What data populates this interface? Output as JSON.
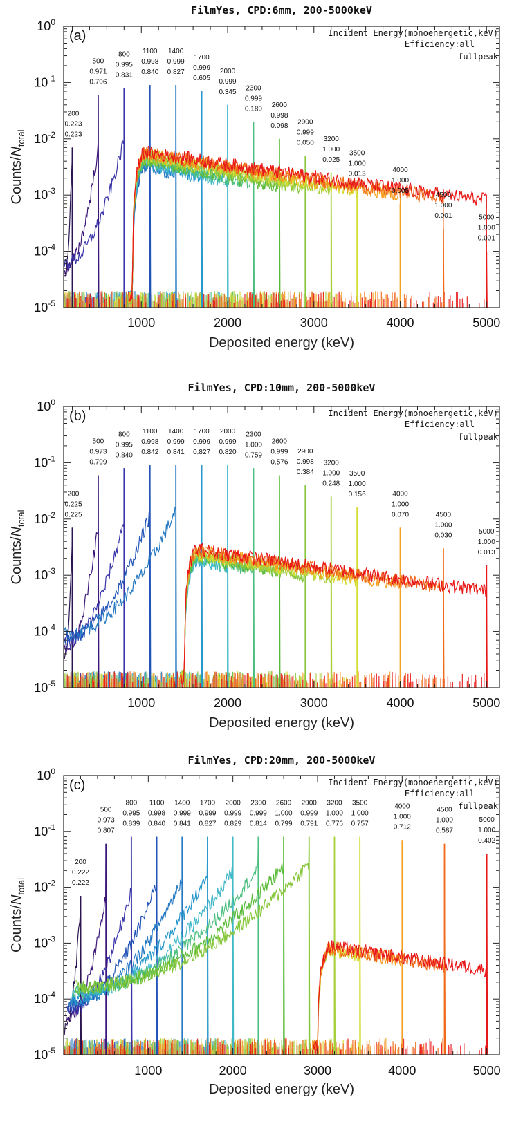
{
  "chart_data": [
    {
      "type": "line",
      "title": "FilmYes, CPD:6mm, 200-5000keV",
      "panel_label": "(a)",
      "xlabel": "Deposited energy (keV)",
      "ylabel_main": "Counts/",
      "ylabel_italic": "N",
      "ylabel_sub": "total",
      "xlim": [
        100,
        5150
      ],
      "ylim": [
        1e-05,
        1
      ],
      "yscale": "log",
      "x_ticks": [
        1000,
        2000,
        3000,
        4000,
        5000
      ],
      "x_tick_labels": [
        "1000",
        "2000",
        "3000",
        "4000",
        "5000"
      ],
      "y_tick_exponents": [
        "0",
        "-1",
        "-2",
        "-3",
        "-4",
        "-5"
      ],
      "legend_lines": [
        "Incident Energy(monoenergetic,keV)",
        "Efficiency:all",
        "fullpeak"
      ],
      "threshold_keV": 900,
      "continuum_peak": 0.006,
      "series": [
        {
          "energy": 200,
          "label": "200",
          "efficiency_all": "0.223",
          "fullpeak": "0.223",
          "peak": 0.007,
          "color": "#2b1450"
        },
        {
          "energy": 500,
          "label": "500",
          "efficiency_all": "0.971",
          "fullpeak": "0.796",
          "peak": 0.06,
          "color": "#3c1678"
        },
        {
          "energy": 800,
          "label": "800",
          "efficiency_all": "0.995",
          "fullpeak": "0.831",
          "peak": 0.08,
          "color": "#3a35a8"
        },
        {
          "energy": 1100,
          "label": "1100",
          "efficiency_all": "0.998",
          "fullpeak": "0.840",
          "peak": 0.09,
          "color": "#2355b8"
        },
        {
          "energy": 1400,
          "label": "1400",
          "efficiency_all": "0.999",
          "fullpeak": "0.827",
          "peak": 0.09,
          "color": "#2579c2"
        },
        {
          "energy": 1700,
          "label": "1700",
          "efficiency_all": "0.999",
          "fullpeak": "0.605",
          "peak": 0.07,
          "color": "#2898cc"
        },
        {
          "energy": 2000,
          "label": "2000",
          "efficiency_all": "0.999",
          "fullpeak": "0.345",
          "peak": 0.04,
          "color": "#40b8c8"
        },
        {
          "energy": 2300,
          "label": "2300",
          "efficiency_all": "0.999",
          "fullpeak": "0.189",
          "peak": 0.02,
          "color": "#4cbf80"
        },
        {
          "energy": 2600,
          "label": "2600",
          "efficiency_all": "0.998",
          "fullpeak": "0.098",
          "peak": 0.01,
          "color": "#5abb3a"
        },
        {
          "energy": 2900,
          "label": "2900",
          "efficiency_all": "0.999",
          "fullpeak": "0.050",
          "peak": 0.005,
          "color": "#86c63a"
        },
        {
          "energy": 3200,
          "label": "3200",
          "efficiency_all": "1.000",
          "fullpeak": "0.025",
          "peak": 0.0025,
          "color": "#a8cf3a"
        },
        {
          "energy": 3500,
          "label": "3500",
          "efficiency_all": "1.000",
          "fullpeak": "0.013",
          "peak": 0.0014,
          "color": "#d4dc30"
        },
        {
          "energy": 4000,
          "label": "4000",
          "efficiency_all": "1.000",
          "fullpeak": "0.005",
          "peak": 0.0007,
          "color": "#f4a020"
        },
        {
          "energy": 4500,
          "label": "4500",
          "efficiency_all": "1.000",
          "fullpeak": "0.001",
          "peak": 0.00025,
          "color": "#f06a1a"
        },
        {
          "energy": 5000,
          "label": "5000",
          "efficiency_all": "1.000",
          "fullpeak": "0.001",
          "peak": 0.0001,
          "color": "#e81818"
        }
      ]
    },
    {
      "type": "line",
      "title": "FilmYes, CPD:10mm, 200-5000keV",
      "panel_label": "(b)",
      "xlabel": "Deposited energy (keV)",
      "ylabel_main": "Counts/",
      "ylabel_italic": "N",
      "ylabel_sub": "total",
      "xlim": [
        100,
        5150
      ],
      "ylim": [
        1e-05,
        1
      ],
      "yscale": "log",
      "x_ticks": [
        1000,
        2000,
        3000,
        4000,
        5000
      ],
      "x_tick_labels": [
        "1000",
        "2000",
        "3000",
        "4000",
        "5000"
      ],
      "y_tick_exponents": [
        "0",
        "-1",
        "-2",
        "-3",
        "-4",
        "-5"
      ],
      "legend_lines": [
        "Incident Energy(monoenergetic,keV)",
        "Efficiency:all",
        "fullpeak"
      ],
      "threshold_keV": 1500,
      "continuum_peak": 0.003,
      "series": [
        {
          "energy": 200,
          "label": "200",
          "efficiency_all": "0.225",
          "fullpeak": "0.225",
          "peak": 0.007,
          "color": "#2b1450"
        },
        {
          "energy": 500,
          "label": "500",
          "efficiency_all": "0.973",
          "fullpeak": "0.799",
          "peak": 0.06,
          "color": "#3c1678"
        },
        {
          "energy": 800,
          "label": "800",
          "efficiency_all": "0.995",
          "fullpeak": "0.840",
          "peak": 0.08,
          "color": "#3a35a8"
        },
        {
          "energy": 1100,
          "label": "1100",
          "efficiency_all": "0.998",
          "fullpeak": "0.842",
          "peak": 0.09,
          "color": "#2355b8"
        },
        {
          "energy": 1400,
          "label": "1400",
          "efficiency_all": "0.999",
          "fullpeak": "0.841",
          "peak": 0.09,
          "color": "#2579c2"
        },
        {
          "energy": 1700,
          "label": "1700",
          "efficiency_all": "0.999",
          "fullpeak": "0.827",
          "peak": 0.09,
          "color": "#2898cc"
        },
        {
          "energy": 2000,
          "label": "2000",
          "efficiency_all": "0.999",
          "fullpeak": "0.820",
          "peak": 0.09,
          "color": "#40b8c8"
        },
        {
          "energy": 2300,
          "label": "2300",
          "efficiency_all": "1.000",
          "fullpeak": "0.759",
          "peak": 0.08,
          "color": "#4cbf80"
        },
        {
          "energy": 2600,
          "label": "2600",
          "efficiency_all": "0.999",
          "fullpeak": "0.576",
          "peak": 0.06,
          "color": "#5abb3a"
        },
        {
          "energy": 2900,
          "label": "2900",
          "efficiency_all": "0.998",
          "fullpeak": "0.384",
          "peak": 0.04,
          "color": "#86c63a"
        },
        {
          "energy": 3200,
          "label": "3200",
          "efficiency_all": "1.000",
          "fullpeak": "0.248",
          "peak": 0.025,
          "color": "#a8cf3a"
        },
        {
          "energy": 3500,
          "label": "3500",
          "efficiency_all": "1.000",
          "fullpeak": "0.156",
          "peak": 0.016,
          "color": "#d4dc30"
        },
        {
          "energy": 4000,
          "label": "4000",
          "efficiency_all": "1.000",
          "fullpeak": "0.070",
          "peak": 0.007,
          "color": "#f4a020"
        },
        {
          "energy": 4500,
          "label": "4500",
          "efficiency_all": "1.000",
          "fullpeak": "0.030",
          "peak": 0.003,
          "color": "#f06a1a"
        },
        {
          "energy": 5000,
          "label": "5000",
          "efficiency_all": "1.000",
          "fullpeak": "0.013",
          "peak": 0.0015,
          "color": "#e81818"
        }
      ]
    },
    {
      "type": "line",
      "title": "FilmYes, CPD:20mm, 200-5000keV",
      "panel_label": "(c)",
      "xlabel": "Deposited energy (keV)",
      "ylabel_main": "Counts/",
      "ylabel_italic": "N",
      "ylabel_sub": "total",
      "xlim": [
        0,
        5150
      ],
      "ylim": [
        1e-05,
        1
      ],
      "yscale": "log",
      "x_ticks": [
        1000,
        2000,
        3000,
        4000,
        5000
      ],
      "x_tick_labels": [
        "1000",
        "2000",
        "3000",
        "4000",
        "5000"
      ],
      "y_tick_exponents": [
        "0",
        "-1",
        "-2",
        "-3",
        "-4",
        "-5"
      ],
      "legend_lines": [
        "Incident Energy(monoenergetic,keV)",
        "Efficiency:all",
        "fullpeak"
      ],
      "threshold_keV": 3000,
      "continuum_peak": 0.0009,
      "series": [
        {
          "energy": 200,
          "label": "200",
          "efficiency_all": "0.222",
          "fullpeak": "0.222",
          "peak": 0.007,
          "color": "#2b1450"
        },
        {
          "energy": 500,
          "label": "500",
          "efficiency_all": "0.973",
          "fullpeak": "0.807",
          "peak": 0.06,
          "color": "#3c1678"
        },
        {
          "energy": 800,
          "label": "800",
          "efficiency_all": "0.995",
          "fullpeak": "0.839",
          "peak": 0.08,
          "color": "#3a35a8"
        },
        {
          "energy": 1100,
          "label": "1100",
          "efficiency_all": "0.998",
          "fullpeak": "0.840",
          "peak": 0.08,
          "color": "#2355b8"
        },
        {
          "energy": 1400,
          "label": "1400",
          "efficiency_all": "0.999",
          "fullpeak": "0.841",
          "peak": 0.08,
          "color": "#2579c2"
        },
        {
          "energy": 1700,
          "label": "1700",
          "efficiency_all": "0.999",
          "fullpeak": "0.827",
          "peak": 0.08,
          "color": "#2898cc"
        },
        {
          "energy": 2000,
          "label": "2000",
          "efficiency_all": "0.999",
          "fullpeak": "0.829",
          "peak": 0.08,
          "color": "#40b8c8"
        },
        {
          "energy": 2300,
          "label": "2300",
          "efficiency_all": "0.999",
          "fullpeak": "0.814",
          "peak": 0.08,
          "color": "#4cbf80"
        },
        {
          "energy": 2600,
          "label": "2600",
          "efficiency_all": "1.000",
          "fullpeak": "0.799",
          "peak": 0.08,
          "color": "#5abb3a"
        },
        {
          "energy": 2900,
          "label": "2900",
          "efficiency_all": "0.999",
          "fullpeak": "0.791",
          "peak": 0.08,
          "color": "#86c63a"
        },
        {
          "energy": 3200,
          "label": "3200",
          "efficiency_all": "1.000",
          "fullpeak": "0.776",
          "peak": 0.08,
          "color": "#a8cf3a"
        },
        {
          "energy": 3500,
          "label": "3500",
          "efficiency_all": "1.000",
          "fullpeak": "0.757",
          "peak": 0.08,
          "color": "#d4dc30"
        },
        {
          "energy": 4000,
          "label": "4000",
          "efficiency_all": "1.000",
          "fullpeak": "0.712",
          "peak": 0.07,
          "color": "#f4a020"
        },
        {
          "energy": 4500,
          "label": "4500",
          "efficiency_all": "1.000",
          "fullpeak": "0.587",
          "peak": 0.06,
          "color": "#f06a1a"
        },
        {
          "energy": 5000,
          "label": "5000",
          "efficiency_all": "1.000",
          "fullpeak": "0.402",
          "peak": 0.04,
          "color": "#e81818"
        }
      ]
    }
  ]
}
